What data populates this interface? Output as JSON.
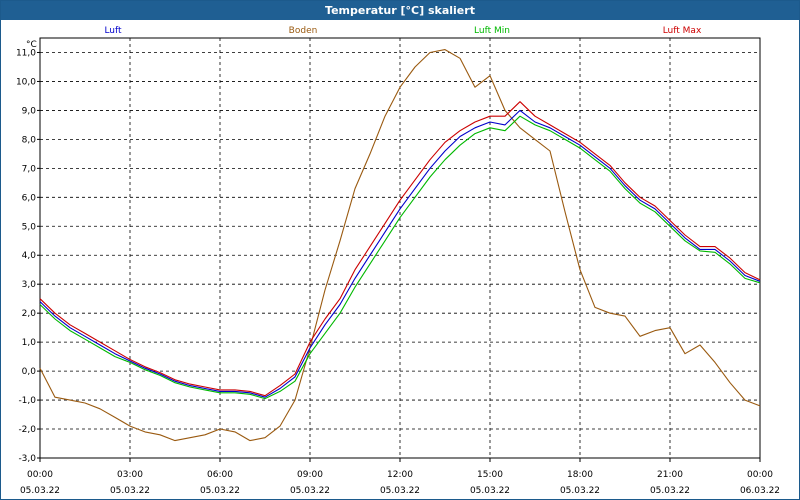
{
  "window": {
    "title": "Temperatur [°C] skaliert"
  },
  "chart_data": {
    "type": "line",
    "title": "Temperatur [°C] skaliert",
    "ylabel": "°C",
    "xlabel": "",
    "ylim": [
      -3.0,
      11.5
    ],
    "xlim": [
      0,
      24
    ],
    "grid": true,
    "legend_position": "top",
    "y_ticks": [
      "11,0",
      "10,0",
      "9,0",
      "8,0",
      "7,0",
      "6,0",
      "5,0",
      "4,0",
      "3,0",
      "2,0",
      "1,0",
      "0,0",
      "-1,0",
      "-2,0",
      "-3,0"
    ],
    "y_tick_values": [
      11,
      10,
      9,
      8,
      7,
      6,
      5,
      4,
      3,
      2,
      1,
      0,
      -1,
      -2,
      -3
    ],
    "x_ticks": [
      {
        "x": 0,
        "time": "00:00",
        "date": "05.03.22"
      },
      {
        "x": 3,
        "time": "03:00",
        "date": "05.03.22"
      },
      {
        "x": 6,
        "time": "06:00",
        "date": "05.03.22"
      },
      {
        "x": 9,
        "time": "09:00",
        "date": "05.03.22"
      },
      {
        "x": 12,
        "time": "12:00",
        "date": "05.03.22"
      },
      {
        "x": 15,
        "time": "15:00",
        "date": "05.03.22"
      },
      {
        "x": 18,
        "time": "18:00",
        "date": "05.03.22"
      },
      {
        "x": 21,
        "time": "21:00",
        "date": "05.03.22"
      },
      {
        "x": 24,
        "time": "00:00",
        "date": "06.03.22"
      }
    ],
    "x": [
      0,
      0.5,
      1,
      1.5,
      2,
      2.5,
      3,
      3.5,
      4,
      4.5,
      5,
      5.5,
      6,
      6.5,
      7,
      7.5,
      8,
      8.5,
      9,
      9.5,
      10,
      10.5,
      11,
      11.5,
      12,
      12.5,
      13,
      13.5,
      14,
      14.5,
      15,
      15.5,
      16,
      16.5,
      17,
      17.5,
      18,
      18.5,
      19,
      19.5,
      20,
      20.5,
      21,
      21.5,
      22,
      22.5,
      23,
      23.5,
      24
    ],
    "series": [
      {
        "name": "Luft",
        "color": "#0000cc",
        "values": [
          2.4,
          1.9,
          1.5,
          1.2,
          0.9,
          0.6,
          0.35,
          0.1,
          -0.1,
          -0.35,
          -0.5,
          -0.6,
          -0.7,
          -0.7,
          -0.75,
          -0.9,
          -0.6,
          -0.2,
          0.8,
          1.6,
          2.3,
          3.2,
          4.0,
          4.8,
          5.6,
          6.3,
          7.0,
          7.6,
          8.1,
          8.4,
          8.6,
          8.5,
          9.0,
          8.6,
          8.4,
          8.1,
          7.8,
          7.4,
          7.0,
          6.4,
          5.9,
          5.6,
          5.1,
          4.6,
          4.2,
          4.2,
          3.8,
          3.3,
          3.1
        ]
      },
      {
        "name": "Boden",
        "color": "#9a5a10",
        "values": [
          0.1,
          -0.9,
          -1.0,
          -1.1,
          -1.3,
          -1.6,
          -1.9,
          -2.1,
          -2.2,
          -2.4,
          -2.3,
          -2.2,
          -2.0,
          -2.1,
          -2.4,
          -2.3,
          -1.9,
          -1.0,
          0.8,
          2.8,
          4.5,
          6.3,
          7.5,
          8.8,
          9.8,
          10.5,
          11.0,
          11.1,
          10.8,
          9.8,
          10.2,
          9.0,
          8.4,
          8.0,
          7.6,
          5.5,
          3.5,
          2.2,
          2.0,
          1.9,
          1.2,
          1.4,
          1.5,
          0.6,
          0.9,
          0.3,
          -0.4,
          -1.0,
          -1.2
        ]
      },
      {
        "name": "Luft Min",
        "color": "#00b800",
        "values": [
          2.3,
          1.8,
          1.4,
          1.1,
          0.8,
          0.5,
          0.3,
          0.05,
          -0.15,
          -0.4,
          -0.55,
          -0.65,
          -0.75,
          -0.75,
          -0.8,
          -0.95,
          -0.7,
          -0.35,
          0.6,
          1.3,
          2.0,
          2.9,
          3.7,
          4.5,
          5.3,
          6.0,
          6.7,
          7.3,
          7.8,
          8.2,
          8.4,
          8.3,
          8.8,
          8.5,
          8.3,
          8.0,
          7.7,
          7.3,
          6.9,
          6.3,
          5.8,
          5.5,
          5.0,
          4.5,
          4.15,
          4.1,
          3.7,
          3.2,
          3.05
        ]
      },
      {
        "name": "Luft Max",
        "color": "#cc0000",
        "values": [
          2.5,
          2.0,
          1.6,
          1.3,
          1.0,
          0.7,
          0.4,
          0.15,
          -0.05,
          -0.3,
          -0.45,
          -0.55,
          -0.65,
          -0.65,
          -0.7,
          -0.85,
          -0.5,
          -0.1,
          1.0,
          1.8,
          2.5,
          3.5,
          4.3,
          5.1,
          5.9,
          6.6,
          7.3,
          7.9,
          8.3,
          8.6,
          8.8,
          8.8,
          9.3,
          8.8,
          8.5,
          8.2,
          7.9,
          7.5,
          7.1,
          6.5,
          6.0,
          5.7,
          5.2,
          4.7,
          4.3,
          4.3,
          3.9,
          3.4,
          3.15
        ]
      }
    ]
  }
}
